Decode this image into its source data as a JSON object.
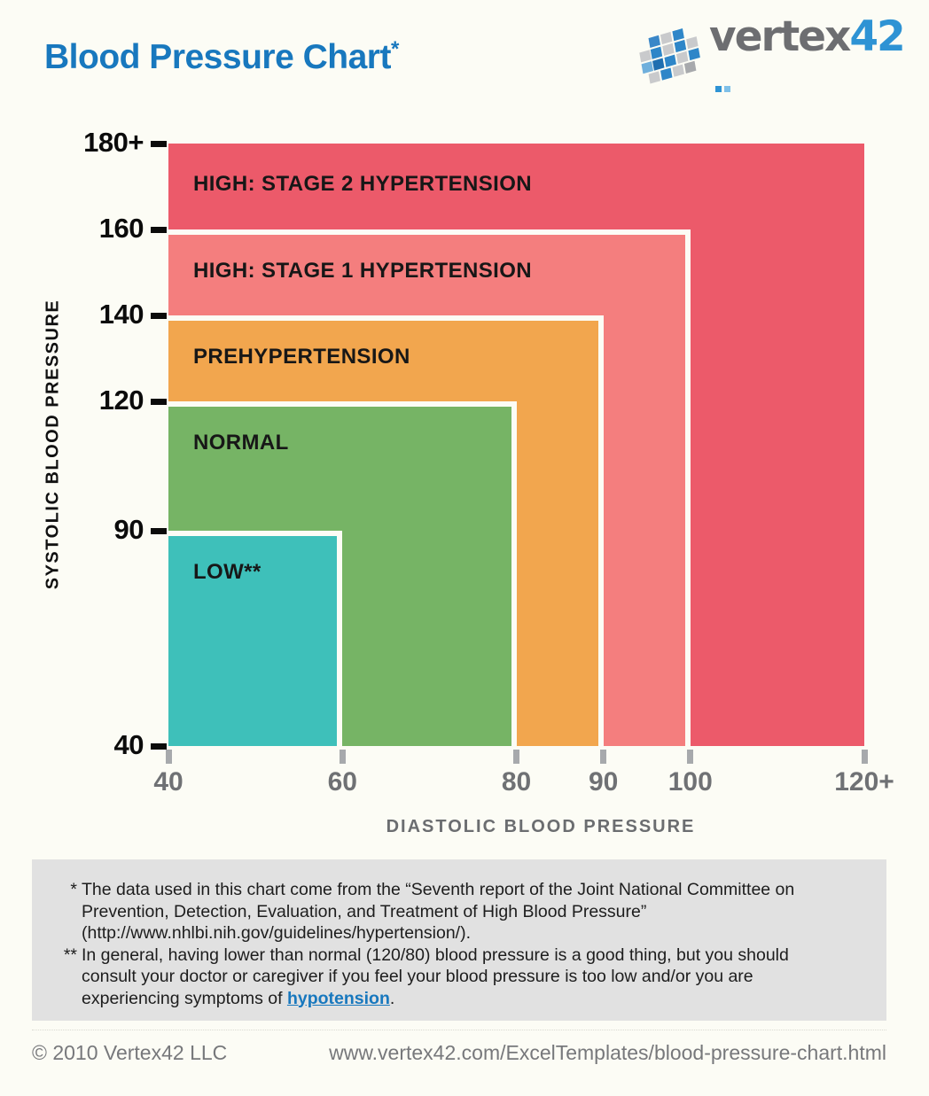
{
  "page": {
    "title": "Blood Pressure Chart",
    "title_note_marker": "*"
  },
  "logo": {
    "brand_gray": "vertex",
    "brand_blue": "42",
    "gray_hex": "#6D6E71",
    "blue_hex": "#2E93D4"
  },
  "chart_data": {
    "type": "area",
    "title": "Blood Pressure Chart",
    "xlabel": "DIASTOLIC BLOOD PRESSURE",
    "ylabel": "SYSTOLIC BLOOD PRESSURE",
    "xlim": [
      40,
      120
    ],
    "ylim": [
      40,
      180
    ],
    "grid": false,
    "legend": "labels drawn inside zones",
    "x_ticks": [
      {
        "value": 40,
        "label": "40"
      },
      {
        "value": 60,
        "label": "60"
      },
      {
        "value": 80,
        "label": "80"
      },
      {
        "value": 90,
        "label": "90"
      },
      {
        "value": 100,
        "label": "100"
      },
      {
        "value": 120,
        "label": "120+"
      }
    ],
    "y_ticks": [
      {
        "value": 40,
        "label": "40"
      },
      {
        "value": 90,
        "label": "90"
      },
      {
        "value": 120,
        "label": "120"
      },
      {
        "value": 140,
        "label": "140"
      },
      {
        "value": 160,
        "label": "160"
      },
      {
        "value": 180,
        "label": "180+"
      }
    ],
    "zones": [
      {
        "label": "HIGH: STAGE 2 HYPERTENSION",
        "diastolic_min": 40,
        "diastolic_max": 120,
        "systolic_min": 40,
        "systolic_max": 180,
        "color": "#EC5A6A"
      },
      {
        "label": "HIGH: STAGE 1 HYPERTENSION",
        "diastolic_min": 40,
        "diastolic_max": 100,
        "systolic_min": 40,
        "systolic_max": 160,
        "color": "#F47E7E"
      },
      {
        "label": "PREHYPERTENSION",
        "diastolic_min": 40,
        "diastolic_max": 90,
        "systolic_min": 40,
        "systolic_max": 140,
        "color": "#F2A64E"
      },
      {
        "label": "NORMAL",
        "diastolic_min": 40,
        "diastolic_max": 80,
        "systolic_min": 40,
        "systolic_max": 120,
        "color": "#76B465"
      },
      {
        "label": "LOW**",
        "diastolic_min": 40,
        "diastolic_max": 60,
        "systolic_min": 40,
        "systolic_max": 90,
        "color": "#3EC0BA"
      }
    ]
  },
  "footnotes": {
    "note1_marker": "*",
    "note1_lines": [
      "The data used in this chart come from the “Seventh report of the Joint National Committee on",
      "Prevention, Detection, Evaluation, and Treatment of High Blood Pressure”",
      "(http://www.nhlbi.nih.gov/guidelines/hypertension/)."
    ],
    "note2_marker": "**",
    "note2_lines": [
      "In general, having lower than normal (120/80) blood pressure is a good thing, but you should",
      "consult your doctor or caregiver if you feel your blood pressure is too low and/or you are"
    ],
    "note2_last_prefix": "experiencing symptoms of ",
    "note2_link": "hypotension",
    "note2_last_suffix": "."
  },
  "footer": {
    "copyright": "© 2010 Vertex42 LLC",
    "url": "www.vertex42.com/ExcelTemplates/blood-pressure-chart.html"
  }
}
